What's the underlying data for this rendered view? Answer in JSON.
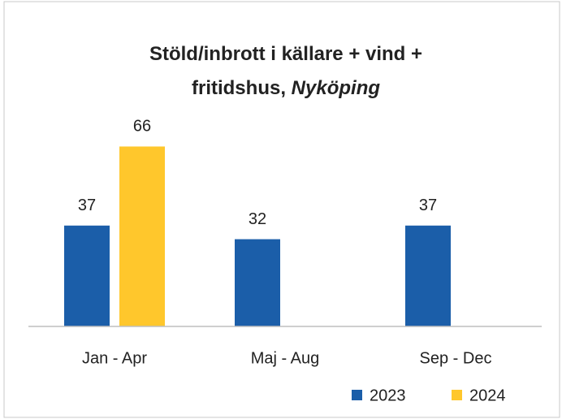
{
  "chart_data": {
    "type": "bar",
    "title": [
      "Stöld/inbrott i källare + vind +",
      "fritidshus,"
    ],
    "title_italic": "Nyköping",
    "categories": [
      "Jan - Apr",
      "Maj - Aug",
      "Sep - Dec"
    ],
    "series": [
      {
        "name": "2023",
        "color": "#1b5ea9",
        "values": [
          37,
          32,
          37
        ]
      },
      {
        "name": "2024",
        "color": "#ffc72c",
        "values": [
          66,
          null,
          null
        ]
      }
    ],
    "ylim": [
      0,
      70
    ]
  }
}
